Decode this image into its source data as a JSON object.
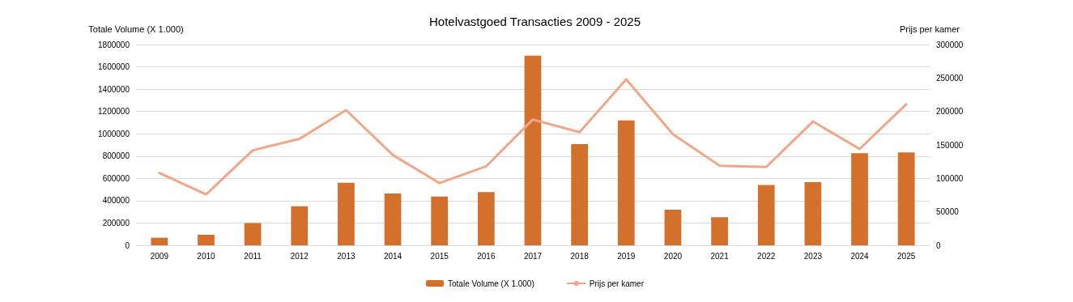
{
  "chart_data": {
    "type": "bar",
    "title": "Hotelvastgoed Transacties 2009 - 2025",
    "ylabel": "Totale Volume (X 1.000)",
    "y2label": "Prijs per kamer",
    "categories": [
      "2009",
      "2010",
      "2011",
      "2012",
      "2013",
      "2014",
      "2015",
      "2016",
      "2017",
      "2018",
      "2019",
      "2020",
      "2021",
      "2022",
      "2023",
      "2024",
      "2025"
    ],
    "series": [
      {
        "name": "Totale Volume (X 1.000)",
        "color": "#d2702c",
        "values": [
          68000,
          95000,
          200000,
          350000,
          560000,
          464000,
          437000,
          477000,
          1700000,
          907000,
          1120000,
          320000,
          252000,
          540000,
          566000,
          825000,
          832000
        ]
      },
      {
        "name": "Prijs per kamer",
        "type": "line",
        "axis": "y2",
        "color": "#f1a688",
        "values": [
          108000,
          76000,
          142000,
          159000,
          202000,
          135000,
          93000,
          118000,
          188000,
          169000,
          248000,
          166000,
          119000,
          117000,
          185000,
          144000,
          211000
        ]
      }
    ],
    "ylim": [
      0,
      1800000
    ],
    "yticks": [
      0,
      200000,
      400000,
      600000,
      800000,
      1000000,
      1200000,
      1400000,
      1600000,
      1800000
    ],
    "y2lim": [
      0,
      300000
    ],
    "y2ticks": [
      0,
      50000,
      100000,
      150000,
      200000,
      250000,
      300000
    ],
    "grid": "y",
    "legend": "bottom",
    "marker": "none",
    "line_style": "solid"
  }
}
